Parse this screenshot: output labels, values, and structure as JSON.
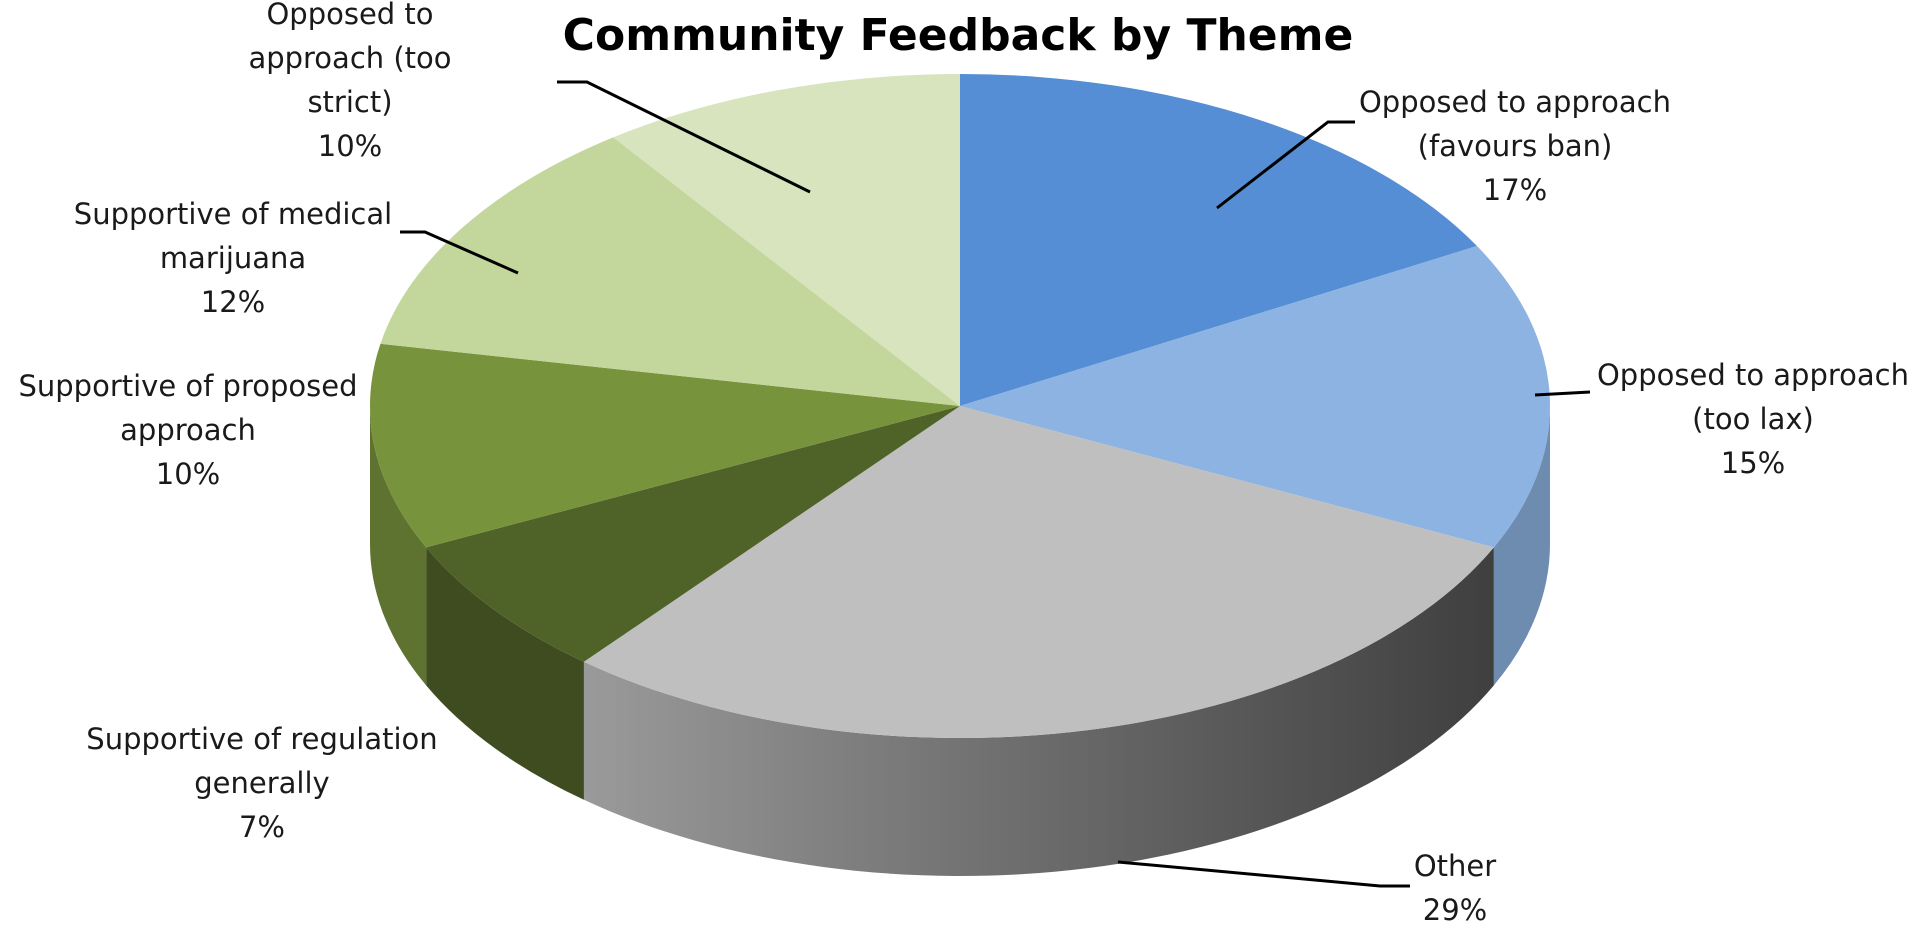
{
  "chart_data": {
    "type": "pie",
    "style": "3d",
    "title": "Community Feedback by Theme",
    "slices": [
      {
        "lines": [
          "Opposed to approach",
          "(favours ban)"
        ],
        "pct_label": "17%",
        "value": 17,
        "color": "#558ed5"
      },
      {
        "lines": [
          "Opposed to approach",
          "(too lax)"
        ],
        "pct_label": "15%",
        "value": 15,
        "color": "#8db3e2"
      },
      {
        "lines": [
          "Other"
        ],
        "pct_label": "29%",
        "value": 29,
        "color": "#bfbfbf"
      },
      {
        "lines": [
          "Supportive of regulation",
          "generally"
        ],
        "pct_label": "7%",
        "value": 7,
        "color": "#4f6228"
      },
      {
        "lines": [
          "Supportive of proposed",
          "approach"
        ],
        "pct_label": "10%",
        "value": 10,
        "color": "#77933c"
      },
      {
        "lines": [
          "Supportive of medical",
          "marijuana"
        ],
        "pct_label": "12%",
        "value": 12,
        "color": "#c3d69b"
      },
      {
        "lines": [
          "Opposed to",
          "approach (too",
          "strict)"
        ],
        "pct_label": "10%",
        "value": 10,
        "color": "#d7e4bd"
      }
    ]
  }
}
